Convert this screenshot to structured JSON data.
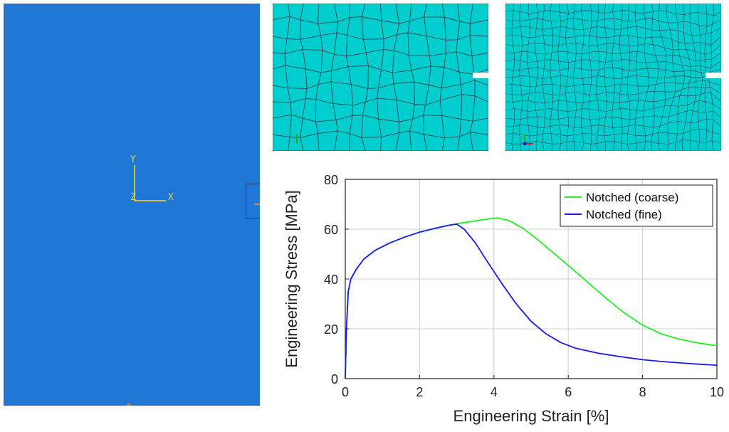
{
  "left_viewport": {
    "axis_labels": {
      "y": "Y",
      "z": "Z",
      "x": "X"
    },
    "colors": {
      "background": "#1f78d6",
      "triad": "#c9c253"
    }
  },
  "mesh_views": [
    {
      "name": "coarse-mesh",
      "colors": {
        "fill": "#00cdcd",
        "grid": "#2b4a50"
      }
    },
    {
      "name": "fine-mesh",
      "colors": {
        "fill": "#00cdcd",
        "grid": "#2b4a50"
      }
    }
  ],
  "chart_data": {
    "type": "line",
    "title": "",
    "xlabel": "Engineering Strain [%]",
    "ylabel": "Engineering Stress [MPa]",
    "xlim": [
      0,
      10
    ],
    "ylim": [
      0,
      80
    ],
    "xticks": [
      0,
      2,
      4,
      6,
      8,
      10
    ],
    "yticks": [
      0,
      20,
      40,
      60,
      80
    ],
    "grid": true,
    "legend_position": "top-right",
    "series": [
      {
        "name": "Notched (coarse)",
        "color": "#22ee22",
        "x": [
          0,
          0.03,
          0.08,
          0.15,
          0.3,
          0.5,
          0.8,
          1.2,
          1.6,
          2.0,
          2.4,
          2.8,
          3.0,
          3.4,
          3.8,
          4.1,
          4.4,
          4.8,
          5.2,
          5.6,
          6.0,
          6.5,
          7.0,
          7.5,
          8.0,
          8.5,
          9.0,
          9.5,
          10.0
        ],
        "y": [
          0,
          20,
          35,
          40,
          44,
          48,
          51.5,
          54.5,
          56.8,
          58.8,
          60.3,
          61.6,
          62.2,
          63.1,
          64.0,
          64.5,
          63.5,
          60.2,
          55.5,
          50.5,
          45.5,
          39.0,
          32.5,
          26.5,
          21.5,
          18.0,
          15.8,
          14.3,
          13.2
        ]
      },
      {
        "name": "Notched (fine)",
        "color": "#1a1aee",
        "x": [
          0,
          0.03,
          0.08,
          0.15,
          0.3,
          0.5,
          0.8,
          1.2,
          1.6,
          2.0,
          2.4,
          2.8,
          3.0,
          3.2,
          3.5,
          3.8,
          4.2,
          4.6,
          5.0,
          5.4,
          5.8,
          6.2,
          6.8,
          7.5,
          8.0,
          8.5,
          9.0,
          9.5,
          10.0
        ],
        "y": [
          0,
          20,
          35,
          40,
          44,
          48,
          51.5,
          54.5,
          56.8,
          58.8,
          60.3,
          61.6,
          62.0,
          60.0,
          54.5,
          47.5,
          38.5,
          30.0,
          23.0,
          18.0,
          14.5,
          12.2,
          10.2,
          8.6,
          7.6,
          6.9,
          6.3,
          5.8,
          5.4
        ]
      }
    ]
  }
}
